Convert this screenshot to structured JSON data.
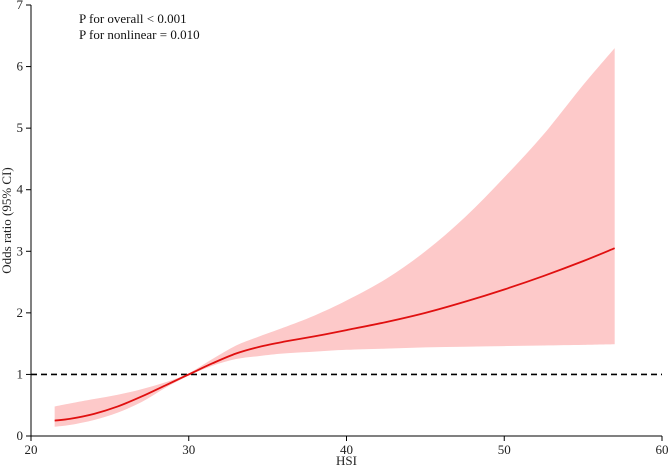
{
  "chart_data": {
    "type": "line",
    "title": "",
    "xlabel": "HSI",
    "ylabel": "Odds ratio (95% CI)",
    "xlim": [
      20,
      60
    ],
    "ylim": [
      0,
      7
    ],
    "x_ticks": [
      20,
      30,
      40,
      50,
      60
    ],
    "y_ticks": [
      0,
      1,
      2,
      3,
      4,
      5,
      6,
      7
    ],
    "x_tick_labels": [
      "20",
      "30",
      "40",
      "50",
      "60"
    ],
    "y_tick_labels": [
      "0",
      "1",
      "2",
      "3",
      "4",
      "5",
      "6",
      "7"
    ],
    "annotations": [
      "P for overall < 0.001",
      "P for nonlinear = 0.010"
    ],
    "reference_line": {
      "y": 1,
      "style": "dashed",
      "color": "#000000"
    },
    "grid": false,
    "colors": {
      "line": "#e01010",
      "band": "#fdc9c9"
    },
    "series": [
      {
        "x": [
          21.5,
          22.5,
          24,
          25.5,
          27,
          28.5,
          30,
          31.5,
          33,
          34.5,
          36,
          38,
          40,
          42.5,
          45,
          47.5,
          50,
          52.5,
          55,
          57
        ],
        "estimate": [
          0.25,
          0.28,
          0.36,
          0.48,
          0.64,
          0.82,
          1.0,
          1.18,
          1.34,
          1.45,
          1.53,
          1.62,
          1.72,
          1.85,
          2.0,
          2.18,
          2.38,
          2.6,
          2.84,
          3.05
        ],
        "lower": [
          0.15,
          0.18,
          0.26,
          0.38,
          0.55,
          0.78,
          0.98,
          1.14,
          1.25,
          1.3,
          1.34,
          1.37,
          1.4,
          1.42,
          1.44,
          1.45,
          1.46,
          1.47,
          1.48,
          1.49
        ],
        "upper": [
          0.48,
          0.53,
          0.6,
          0.67,
          0.76,
          0.87,
          1.02,
          1.25,
          1.47,
          1.62,
          1.76,
          1.96,
          2.2,
          2.55,
          3.0,
          3.55,
          4.2,
          4.9,
          5.7,
          6.3
        ]
      }
    ]
  }
}
